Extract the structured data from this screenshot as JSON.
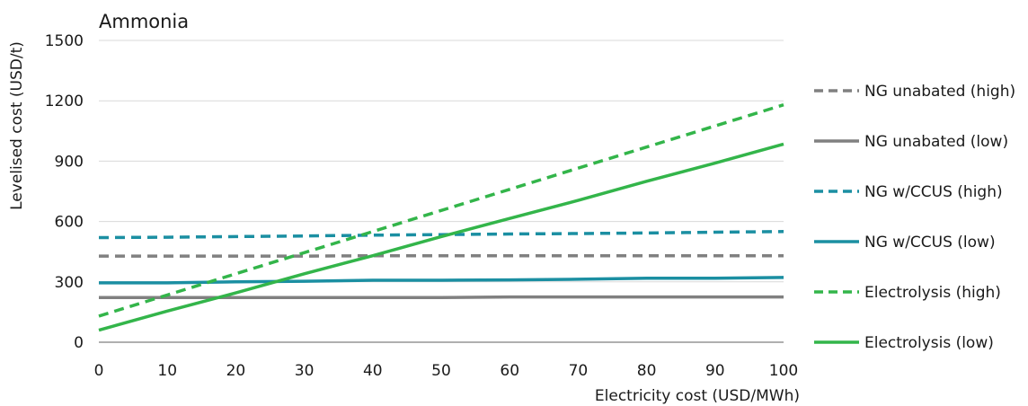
{
  "chart_data": {
    "type": "line",
    "title": "Ammonia",
    "xlabel": "Electricity cost (USD/MWh)",
    "ylabel": "Levelised cost (USD/t)",
    "xlim": [
      0,
      100
    ],
    "ylim": [
      0,
      1500
    ],
    "xticks": [
      "0",
      "10",
      "20",
      "30",
      "40",
      "50",
      "60",
      "70",
      "80",
      "90",
      "100"
    ],
    "yticks": [
      "0",
      "300",
      "600",
      "900",
      "1200",
      "1500"
    ],
    "grid": "horizontal",
    "legend_position": "right",
    "x": [
      0,
      10,
      20,
      30,
      40,
      50,
      60,
      70,
      80,
      90,
      100
    ],
    "series": [
      {
        "name": "NG unabated (high)",
        "color": "#808080",
        "style": "dashed",
        "values": [
          428,
          428,
          428,
          428,
          430,
          430,
          430,
          430,
          430,
          430,
          430
        ]
      },
      {
        "name": "NG unabated (low)",
        "color": "#808080",
        "style": "solid",
        "values": [
          222,
          222,
          222,
          222,
          222,
          222,
          225,
          225,
          225,
          225,
          225
        ]
      },
      {
        "name": "NG w/CCUS (high)",
        "color": "#1b8fa2",
        "style": "dashed",
        "values": [
          520,
          522,
          525,
          528,
          532,
          535,
          538,
          540,
          543,
          547,
          550
        ]
      },
      {
        "name": "NG w/CCUS (low)",
        "color": "#1b8fa2",
        "style": "solid",
        "values": [
          295,
          295,
          300,
          303,
          308,
          308,
          310,
          313,
          318,
          318,
          322
        ]
      },
      {
        "name": "Electrolysis (high)",
        "color": "#33b54a",
        "style": "dashed",
        "values": [
          130,
          235,
          340,
          445,
          550,
          655,
          760,
          865,
          970,
          1075,
          1180
        ]
      },
      {
        "name": "Electrolysis (low)",
        "color": "#33b54a",
        "style": "solid",
        "values": [
          60,
          155,
          245,
          340,
          430,
          525,
          615,
          705,
          800,
          890,
          985
        ]
      }
    ]
  }
}
